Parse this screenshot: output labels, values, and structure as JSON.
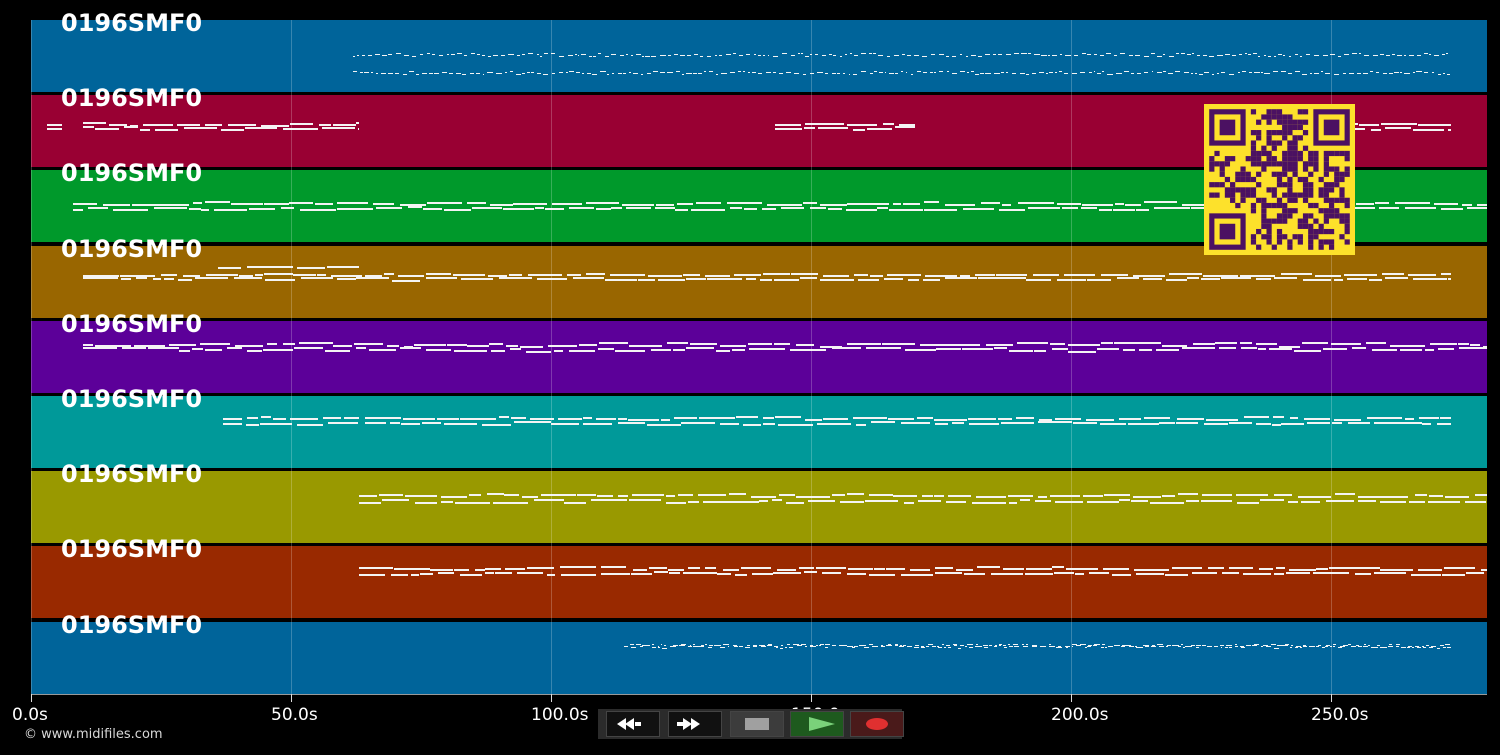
{
  "tracks": [
    {
      "label": "0196SMF0",
      "color": "#00649a"
    },
    {
      "label": "0196SMF0",
      "color": "#990033"
    },
    {
      "label": "0196SMF0",
      "color": "#00992b"
    },
    {
      "label": "0196SMF0",
      "color": "#996600"
    },
    {
      "label": "0196SMF0",
      "color": "#5c0099"
    },
    {
      "label": "0196SMF0",
      "color": "#009999"
    },
    {
      "label": "0196SMF0",
      "color": "#999900"
    },
    {
      "label": "0196SMF0",
      "color": "#992900"
    },
    {
      "label": "0196SMF0",
      "color": "#00649a"
    }
  ],
  "timeline": {
    "max_seconds": 280,
    "ticks": [
      {
        "value": 0,
        "label": "0.0s"
      },
      {
        "value": 50,
        "label": "50.0s"
      },
      {
        "value": 100,
        "label": "100.0s"
      },
      {
        "value": 150,
        "label": "150.0s"
      },
      {
        "value": 200,
        "label": "200.0s"
      },
      {
        "value": 250,
        "label": "250.0s"
      }
    ]
  },
  "footer": {
    "copyright": "© www.midifiles.com"
  },
  "transport": {
    "buttons": [
      {
        "name": "rewind",
        "icon": "rewind-icon"
      },
      {
        "name": "fast-forward",
        "icon": "fast-forward-icon"
      },
      {
        "name": "stop",
        "icon": "stop-icon"
      },
      {
        "name": "play",
        "icon": "play-icon"
      },
      {
        "name": "record",
        "icon": "record-icon"
      }
    ]
  },
  "qr_code": {
    "icon": "qr-code-icon",
    "color": "#fde12b",
    "ink": "#4b1162"
  }
}
